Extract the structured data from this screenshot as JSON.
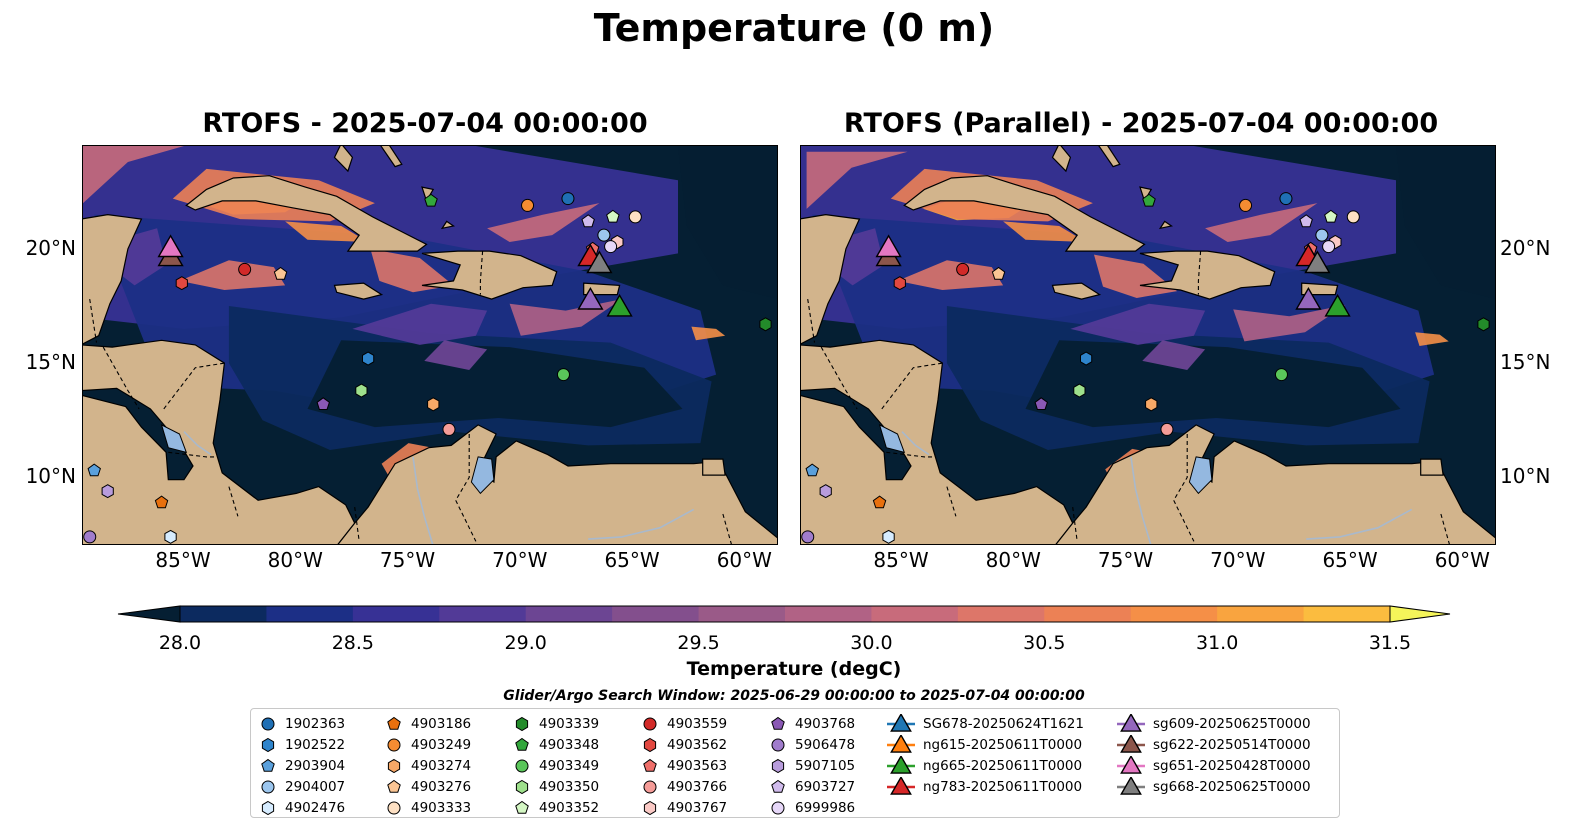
{
  "title": "Temperature (0 m)",
  "panels": [
    {
      "title": "RTOFS - 2025-07-04 00:00:00"
    },
    {
      "title": "RTOFS (Parallel) - 2025-07-04 00:00:00"
    }
  ],
  "axes": {
    "lon_ticks": [
      "85°W",
      "80°W",
      "75°W",
      "70°W",
      "65°W",
      "60°W"
    ],
    "lat_ticks": [
      "20°N",
      "15°N",
      "10°N"
    ]
  },
  "colorbar": {
    "title": "Temperature (degC)",
    "tick_labels": [
      "28.0",
      "28.5",
      "29.0",
      "29.5",
      "30.0",
      "30.5",
      "31.0",
      "31.5"
    ],
    "colors": [
      "#051f33",
      "#0c2a5f",
      "#1c2f86",
      "#373195",
      "#523a97",
      "#6c4593",
      "#834f8d",
      "#9a5a88",
      "#b16285",
      "#c86b7b",
      "#dd7669",
      "#ec8155",
      "#f58f47",
      "#f9a43f",
      "#fbbc3f",
      "#f7d84a"
    ]
  },
  "search_window": "Glider/Argo Search Window: 2025-06-29 00:00:00 to 2025-07-04 00:00:00",
  "legend": [
    {
      "label": "1902363",
      "marker": "circle",
      "color": "#1f6fb4"
    },
    {
      "label": "1902522",
      "marker": "hexagon",
      "color": "#2e84cc"
    },
    {
      "label": "2903904",
      "marker": "pentagon",
      "color": "#5aa0dc"
    },
    {
      "label": "2904007",
      "marker": "circle",
      "color": "#9cc6ee"
    },
    {
      "label": "4902476",
      "marker": "hexagon",
      "color": "#d6ecff"
    },
    {
      "label": "4903186",
      "marker": "pentagon",
      "color": "#e8700e"
    },
    {
      "label": "4903249",
      "marker": "circle",
      "color": "#f58c32"
    },
    {
      "label": "4903274",
      "marker": "hexagon",
      "color": "#f7a867"
    },
    {
      "label": "4903276",
      "marker": "pentagon",
      "color": "#fac594"
    },
    {
      "label": "4903333",
      "marker": "circle",
      "color": "#fde0c3"
    },
    {
      "label": "4903339",
      "marker": "hexagon",
      "color": "#238b2a"
    },
    {
      "label": "4903348",
      "marker": "pentagon",
      "color": "#33a73c"
    },
    {
      "label": "4903349",
      "marker": "circle",
      "color": "#5ac65a"
    },
    {
      "label": "4903350",
      "marker": "hexagon",
      "color": "#9ee08c"
    },
    {
      "label": "4903352",
      "marker": "pentagon",
      "color": "#d4f7c4"
    },
    {
      "label": "4903559",
      "marker": "circle",
      "color": "#d22a28"
    },
    {
      "label": "4903562",
      "marker": "hexagon",
      "color": "#e24840"
    },
    {
      "label": "4903563",
      "marker": "pentagon",
      "color": "#ef6f6a"
    },
    {
      "label": "4903766",
      "marker": "circle",
      "color": "#f59c98"
    },
    {
      "label": "4903767",
      "marker": "hexagon",
      "color": "#fac9c5"
    },
    {
      "label": "4903768",
      "marker": "pentagon",
      "color": "#8a58b4"
    },
    {
      "label": "5906478",
      "marker": "circle",
      "color": "#a07ccc"
    },
    {
      "label": "5907105",
      "marker": "hexagon",
      "color": "#b89cdc"
    },
    {
      "label": "6903727",
      "marker": "pentagon",
      "color": "#d0bbec"
    },
    {
      "label": "6999986",
      "marker": "circle",
      "color": "#e6d7f8"
    },
    {
      "label": "SG678-20250624T1621",
      "marker": "triangle",
      "color": "#1f77b4"
    },
    {
      "label": "ng615-20250611T0000",
      "marker": "triangle",
      "color": "#ff7f0e"
    },
    {
      "label": "ng665-20250611T0000",
      "marker": "triangle",
      "color": "#2ca02c"
    },
    {
      "label": "ng783-20250611T0000",
      "marker": "triangle",
      "color": "#d62728"
    },
    {
      "label": "sg609-20250625T0000",
      "marker": "triangle",
      "color": "#9467bd"
    },
    {
      "label": "sg622-20250514T0000",
      "marker": "triangle",
      "color": "#8c564b"
    },
    {
      "label": "sg651-20250428T0000",
      "marker": "triangle",
      "color": "#e377c2"
    },
    {
      "label": "sg668-20250625T0000",
      "marker": "triangle",
      "color": "#7f7f7f"
    }
  ],
  "observations": [
    {
      "id": "1902363",
      "lon": -67.9,
      "lat": 22.2
    },
    {
      "id": "1902522",
      "lon": -76.8,
      "lat": 15.2
    },
    {
      "id": "2903904",
      "lon": -89.0,
      "lat": 10.3
    },
    {
      "id": "2904007",
      "lon": -66.3,
      "lat": 20.6
    },
    {
      "id": "4902476",
      "lon": -85.6,
      "lat": 7.4
    },
    {
      "id": "4903186",
      "lon": -86.0,
      "lat": 8.9
    },
    {
      "id": "4903249",
      "lon": -69.7,
      "lat": 21.9
    },
    {
      "id": "4903274",
      "lon": -73.9,
      "lat": 13.2
    },
    {
      "id": "4903276",
      "lon": -80.7,
      "lat": 18.9
    },
    {
      "id": "4903333",
      "lon": -64.9,
      "lat": 21.4
    },
    {
      "id": "4903339",
      "lon": -59.1,
      "lat": 16.7
    },
    {
      "id": "4903348",
      "lon": -74.0,
      "lat": 22.1
    },
    {
      "id": "4903349",
      "lon": -68.1,
      "lat": 14.5
    },
    {
      "id": "4903350",
      "lon": -77.1,
      "lat": 13.8
    },
    {
      "id": "4903352",
      "lon": -65.9,
      "lat": 21.4
    },
    {
      "id": "4903559",
      "lon": -82.3,
      "lat": 19.1
    },
    {
      "id": "4903562",
      "lon": -85.1,
      "lat": 18.5
    },
    {
      "id": "4903563",
      "lon": -66.8,
      "lat": 20.0
    },
    {
      "id": "4903766",
      "lon": -73.2,
      "lat": 12.1
    },
    {
      "id": "4903767",
      "lon": -65.7,
      "lat": 20.3
    },
    {
      "id": "4903768",
      "lon": -78.8,
      "lat": 13.2
    },
    {
      "id": "5906478",
      "lon": -89.2,
      "lat": 7.4
    },
    {
      "id": "5907105",
      "lon": -88.4,
      "lat": 9.4
    },
    {
      "id": "6903727",
      "lon": -67.0,
      "lat": 21.2
    },
    {
      "id": "6999986",
      "lon": -66.0,
      "lat": 20.1
    }
  ],
  "gliders": [
    {
      "id": "ng783-20250611T0000",
      "lon": -66.9,
      "lat": 19.7
    },
    {
      "id": "sg668-20250625T0000",
      "lon": -66.5,
      "lat": 19.4
    },
    {
      "id": "sg609-20250625T0000",
      "lon": -66.9,
      "lat": 17.8
    },
    {
      "id": "ng665-20250611T0000",
      "lon": -65.6,
      "lat": 17.5
    },
    {
      "id": "sg622-20250514T0000",
      "lon": -85.6,
      "lat": 19.7
    },
    {
      "id": "sg651-20250428T0000",
      "lon": -85.6,
      "lat": 20.1
    }
  ]
}
